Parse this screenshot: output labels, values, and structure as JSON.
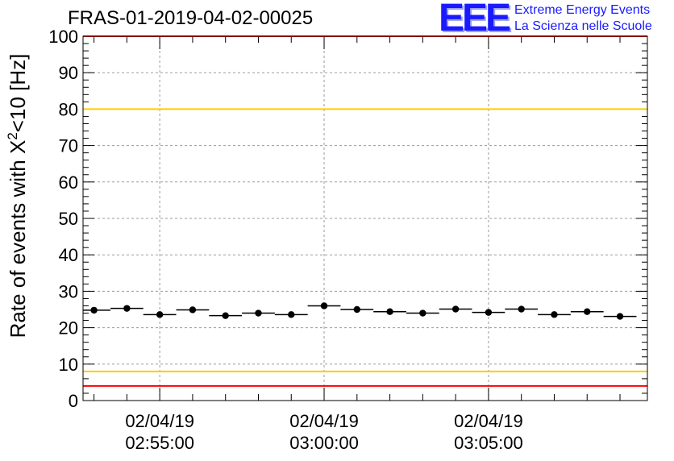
{
  "header": {
    "title": "FRAS-01-2019-04-02-00025"
  },
  "logo": {
    "mark": "EEE",
    "line1": "Extreme Energy Events",
    "line2": "La Scienza nelle Scuole",
    "color": "#1a1aff"
  },
  "chart_data": {
    "type": "scatter",
    "title": "FRAS-01-2019-04-02-00025",
    "xlabel": "",
    "ylabel": "Rate of events with X",
    "ylabel_sup": "2",
    "ylabel_tail": "<10 [Hz]",
    "ylim": [
      0,
      100
    ],
    "yticks": [
      "0",
      "10",
      "20",
      "30",
      "40",
      "50",
      "60",
      "70",
      "80",
      "90",
      "100"
    ],
    "xlim": [
      "02:52:40",
      "03:09:50"
    ],
    "xticks": [
      {
        "date": "02/04/19",
        "time": "02:55:00"
      },
      {
        "date": "02/04/19",
        "time": "03:00:00"
      },
      {
        "date": "02/04/19",
        "time": "03:05:00"
      }
    ],
    "grid": true,
    "bin_width_s": 60,
    "reference_lines": [
      {
        "y": 4,
        "color": "#ff0000"
      },
      {
        "y": 8,
        "color": "#ffcc00"
      },
      {
        "y": 80,
        "color": "#ffcc00"
      },
      {
        "y": 100,
        "color": "#ff0000"
      }
    ],
    "points": [
      {
        "x": "02:53:00",
        "y": 24.8
      },
      {
        "x": "02:54:00",
        "y": 25.3
      },
      {
        "x": "02:55:00",
        "y": 23.6
      },
      {
        "x": "02:56:00",
        "y": 24.9
      },
      {
        "x": "02:57:00",
        "y": 23.3
      },
      {
        "x": "02:58:00",
        "y": 24.0
      },
      {
        "x": "02:59:00",
        "y": 23.6
      },
      {
        "x": "03:00:00",
        "y": 26.0
      },
      {
        "x": "03:01:00",
        "y": 25.0
      },
      {
        "x": "03:02:00",
        "y": 24.4
      },
      {
        "x": "03:03:00",
        "y": 24.0
      },
      {
        "x": "03:04:00",
        "y": 25.1
      },
      {
        "x": "03:05:00",
        "y": 24.2
      },
      {
        "x": "03:06:00",
        "y": 25.1
      },
      {
        "x": "03:07:00",
        "y": 23.6
      },
      {
        "x": "03:08:00",
        "y": 24.4
      },
      {
        "x": "03:09:00",
        "y": 23.1
      }
    ],
    "colors": {
      "axis": "#000000",
      "grid": "#9a9a9a",
      "marker": "#000000"
    }
  }
}
